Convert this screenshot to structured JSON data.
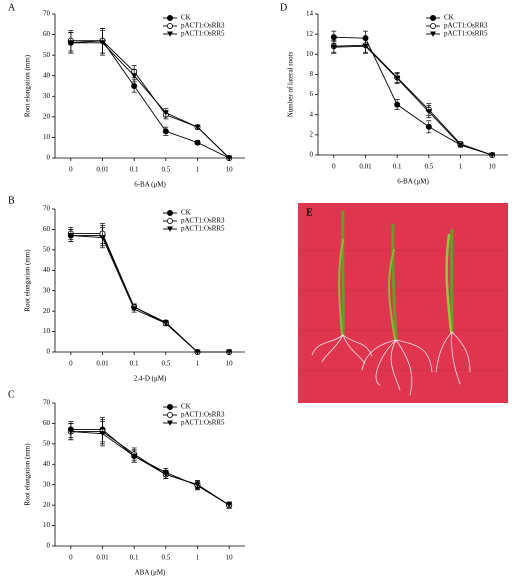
{
  "chart_data": [
    {
      "type": "line",
      "panel_label": "A",
      "x_label": "6-BA (μM)",
      "y_label": "Root elongation (mm)",
      "categories": [
        "0",
        "0.01",
        "0.1",
        "0.5",
        "1",
        "10"
      ],
      "ylim": [
        0,
        70
      ],
      "yticks": [
        0,
        10,
        20,
        30,
        40,
        50,
        60,
        70
      ],
      "series": [
        {
          "name": "CK",
          "color": "#000000",
          "marker": "filled-circle",
          "values": [
            56,
            57,
            35,
            13,
            7.5,
            0
          ],
          "errors": [
            5,
            6,
            3,
            2,
            1,
            0
          ]
        },
        {
          "name": "pACT1:OsRR3",
          "color": "#000000",
          "marker": "open-circle",
          "values": [
            57,
            57,
            42,
            21,
            15,
            0
          ],
          "errors": [
            5,
            6,
            3,
            2,
            1,
            0
          ]
        },
        {
          "name": "pACT1:OsRR5",
          "color": "#000000",
          "marker": "filled-triangle-down",
          "values": [
            56,
            56,
            40,
            22,
            15,
            0
          ],
          "errors": [
            5,
            6,
            3,
            2,
            1,
            0
          ]
        }
      ]
    },
    {
      "type": "line",
      "panel_label": "B",
      "x_label": "2,4-D (μM)",
      "y_label": "Root elongation (mm)",
      "categories": [
        "0",
        "0.01",
        "0.1",
        "0.5",
        "1",
        "10"
      ],
      "ylim": [
        0,
        70
      ],
      "yticks": [
        0,
        10,
        20,
        30,
        40,
        50,
        60,
        70
      ],
      "series": [
        {
          "name": "CK",
          "color": "#000000",
          "marker": "filled-circle",
          "values": [
            57,
            57,
            22,
            14.5,
            0,
            0
          ],
          "errors": [
            3,
            5,
            1.5,
            1,
            0,
            0
          ]
        },
        {
          "name": "pACT1:OsRR3",
          "color": "#000000",
          "marker": "open-circle",
          "values": [
            58,
            58,
            22,
            14,
            0,
            0
          ],
          "errors": [
            3,
            5,
            1.5,
            1,
            0,
            0
          ]
        },
        {
          "name": "pACT1:OsRR5",
          "color": "#000000",
          "marker": "filled-triangle-down",
          "values": [
            57,
            56,
            21,
            14,
            0,
            0
          ],
          "errors": [
            3,
            5,
            1.5,
            1,
            0,
            0
          ]
        }
      ]
    },
    {
      "type": "line",
      "panel_label": "C",
      "x_label": "ABA (μM)",
      "y_label": "Root elongation (mm)",
      "categories": [
        "0",
        "0.01",
        "0.1",
        "0.5",
        "1",
        "10"
      ],
      "ylim": [
        0,
        70
      ],
      "yticks": [
        0,
        10,
        20,
        30,
        40,
        50,
        60,
        70
      ],
      "series": [
        {
          "name": "CK",
          "color": "#000000",
          "marker": "filled-circle",
          "values": [
            57,
            57,
            44,
            36,
            29.5,
            20
          ],
          "errors": [
            4,
            6,
            3,
            2,
            2,
            1.5
          ]
        },
        {
          "name": "pACT1:OsRR3",
          "color": "#000000",
          "marker": "open-circle",
          "values": [
            56,
            56,
            45,
            35,
            30,
            20
          ],
          "errors": [
            4,
            6,
            3,
            2,
            2,
            1.5
          ]
        },
        {
          "name": "pACT1:OsRR5",
          "color": "#000000",
          "marker": "filled-triangle-down",
          "values": [
            56,
            55,
            44,
            35,
            30,
            20
          ],
          "errors": [
            4,
            6,
            3,
            2,
            2,
            1.5
          ]
        }
      ]
    },
    {
      "type": "line",
      "panel_label": "D",
      "x_label": "6-BA (μM)",
      "y_label": "Number of lateral roots",
      "categories": [
        "0",
        "0.01",
        "0.1",
        "0.5",
        "1",
        "10"
      ],
      "ylim": [
        0,
        14
      ],
      "yticks": [
        0,
        2,
        4,
        6,
        8,
        10,
        12,
        14
      ],
      "series": [
        {
          "name": "CK",
          "color": "#000000",
          "marker": "filled-circle",
          "values": [
            11.7,
            11.6,
            5,
            2.8,
            1,
            0
          ],
          "errors": [
            0.6,
            0.7,
            0.5,
            0.6,
            0.2,
            0
          ]
        },
        {
          "name": "pACT1:OsRR3",
          "color": "#000000",
          "marker": "open-circle",
          "values": [
            10.8,
            10.9,
            7.7,
            4.5,
            1.1,
            0
          ],
          "errors": [
            0.6,
            0.7,
            0.5,
            0.6,
            0.2,
            0
          ]
        },
        {
          "name": "pACT1:OsRR5",
          "color": "#000000",
          "marker": "filled-triangle-down",
          "values": [
            10.7,
            10.8,
            7.6,
            4.3,
            1,
            0
          ],
          "errors": [
            0.6,
            0.7,
            0.5,
            0.6,
            0.2,
            0
          ]
        }
      ]
    }
  ],
  "photo": {
    "label": "E"
  }
}
